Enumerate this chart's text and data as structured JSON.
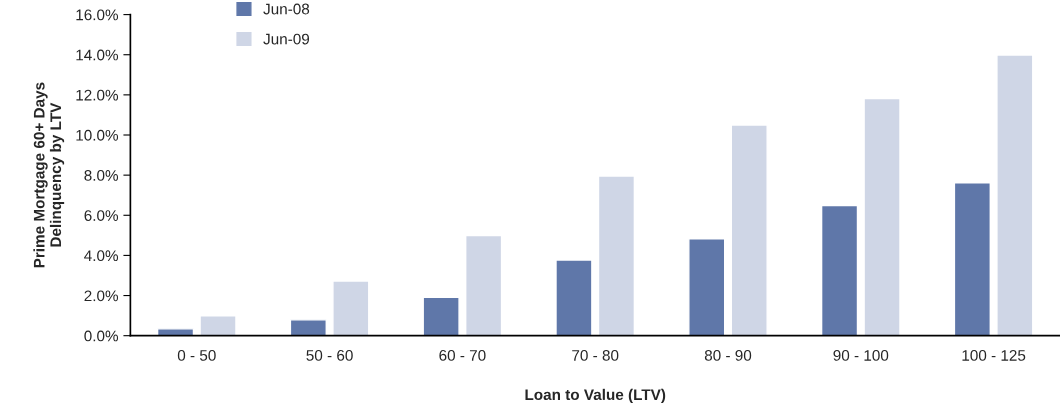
{
  "chart_data": {
    "type": "bar",
    "xlabel": "Loan to Value (LTV)",
    "ylabel": "Prime Mortgage 60+ Days\nDelinquency by LTV",
    "categories": [
      "0 - 50",
      "50 - 60",
      "60 - 70",
      "70 - 80",
      "80 - 90",
      "90 - 100",
      "100 - 125"
    ],
    "series": [
      {
        "name": "Jun-08",
        "color": "#5f77a9",
        "values": [
          0.34,
          0.79,
          1.91,
          3.77,
          4.83,
          6.49,
          7.62
        ]
      },
      {
        "name": "Jun-09",
        "color": "#cfd6e6",
        "values": [
          0.99,
          2.72,
          4.99,
          7.96,
          10.5,
          11.82,
          13.99
        ]
      }
    ],
    "ylim": [
      0,
      16
    ],
    "yticks": [
      {
        "value": 0,
        "label": "0.0%"
      },
      {
        "value": 2,
        "label": "2.0%"
      },
      {
        "value": 4,
        "label": "4.0%"
      },
      {
        "value": 6,
        "label": "6.0%"
      },
      {
        "value": 8,
        "label": "8.0%"
      },
      {
        "value": 10,
        "label": "10.0%"
      },
      {
        "value": 12,
        "label": "12.0%"
      },
      {
        "value": 14,
        "label": "14.0%"
      },
      {
        "value": 16,
        "label": "16.0%"
      }
    ],
    "legend": "top left",
    "grid": false
  }
}
